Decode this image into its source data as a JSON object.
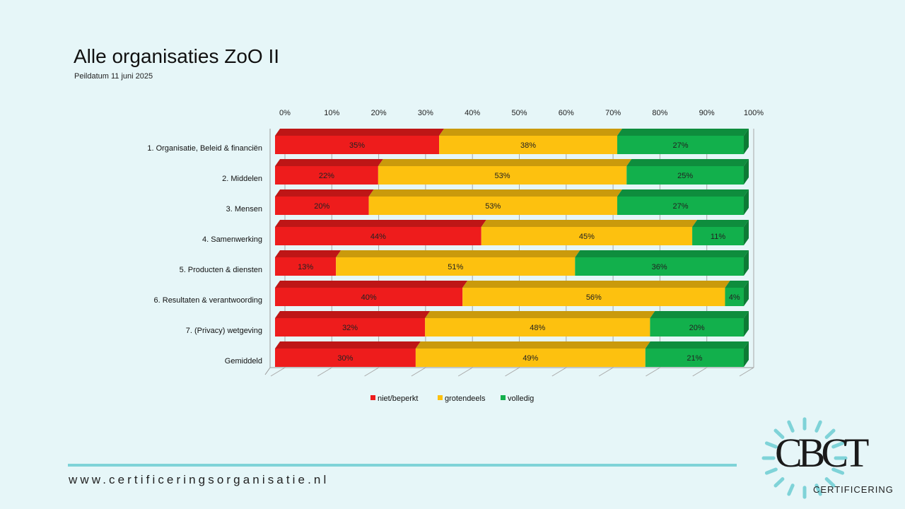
{
  "header": {
    "title": "Alle organisaties ZoO II",
    "subtitle": "Peildatum 11 juni 2025"
  },
  "footer": {
    "url": "www.certificeringsorganisatie.nl"
  },
  "logo": {
    "brand": "CBCT",
    "sub": "CERTIFICERING"
  },
  "colors": {
    "red": "#ee1c1c",
    "yellow": "#fdc10f",
    "green": "#12b04c",
    "accent": "#7fd3d8"
  },
  "chart_data": {
    "type": "bar",
    "orientation": "horizontal",
    "stacked": true,
    "categories": [
      "1. Organisatie, Beleid & financiën",
      "2. Middelen",
      "3. Mensen",
      "4. Samenwerking",
      "5. Producten & diensten",
      "6. Resultaten & verantwoording",
      "7. (Privacy) wetgeving",
      "Gemiddeld"
    ],
    "series": [
      {
        "name": "niet/beperkt",
        "color": "#ee1c1c",
        "values": [
          35,
          22,
          20,
          44,
          13,
          40,
          32,
          30
        ]
      },
      {
        "name": "grotendeels",
        "color": "#fdc10f",
        "values": [
          38,
          53,
          53,
          45,
          51,
          56,
          48,
          49
        ]
      },
      {
        "name": "volledig",
        "color": "#12b04c",
        "values": [
          27,
          25,
          27,
          11,
          36,
          4,
          20,
          21
        ]
      }
    ],
    "xlim": [
      0,
      100
    ],
    "xticks": [
      "0%",
      "10%",
      "20%",
      "30%",
      "40%",
      "50%",
      "60%",
      "70%",
      "80%",
      "90%",
      "100%"
    ],
    "legend": "bottom",
    "grid": true
  }
}
